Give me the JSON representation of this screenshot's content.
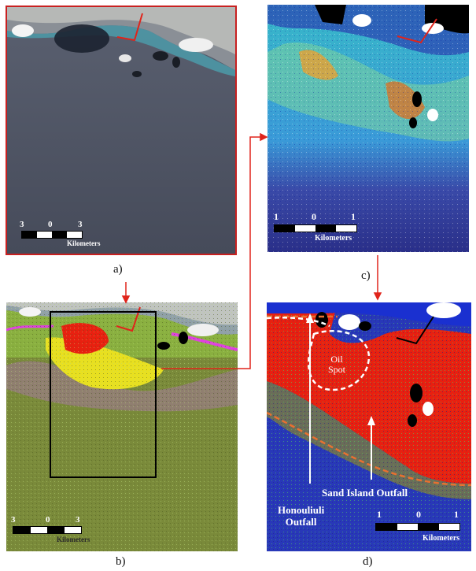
{
  "panels": {
    "a": {
      "caption": "a)",
      "scale_labels": [
        "3",
        "0",
        "3"
      ],
      "scale_unit": "Kilometers"
    },
    "b": {
      "caption": "b)",
      "scale_labels": [
        "3",
        "0",
        "3"
      ],
      "scale_unit": "Kilometers"
    },
    "c": {
      "caption": "c)",
      "scale_labels": [
        "1",
        "0",
        "1"
      ],
      "scale_unit": "Kilometers"
    },
    "d": {
      "caption": "d)",
      "scale_labels": [
        "1",
        "0",
        "1"
      ],
      "scale_unit": "Kilometers",
      "annotations": {
        "oil_spot_line1": "Oil",
        "oil_spot_line2": "Spot",
        "sand_island": "Sand Island Outfall",
        "honouliuli_line1": "Honouliuli",
        "honouliuli_line2": "Outfall"
      }
    }
  },
  "colors": {
    "connector": "#e0241b",
    "frame_a": "#c82020",
    "sea_dark": "#4a5060",
    "class_green": "#7a8a3a",
    "oil_red": "#e82010",
    "index_blue": "#2a2f9a"
  }
}
